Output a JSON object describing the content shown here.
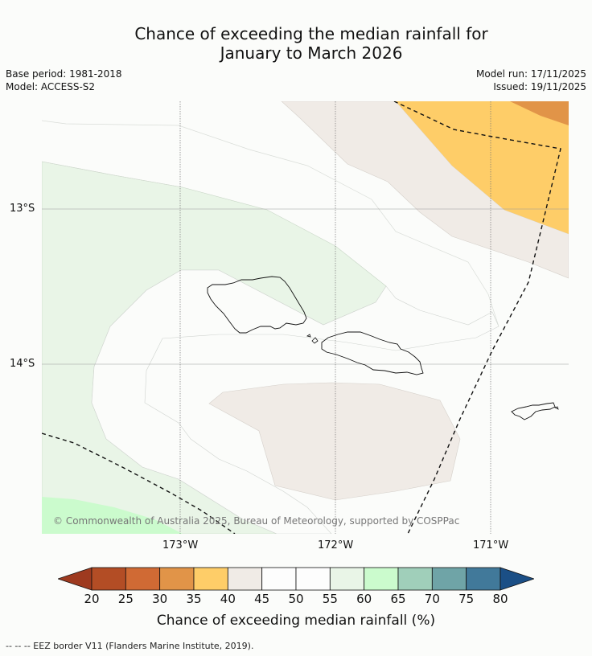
{
  "title_line1": "Chance of exceeding the median rainfall for",
  "title_line2": "January to March 2026",
  "base_period": "Base period: 1981-2018",
  "model": "Model: ACCESS-S2",
  "model_run": "Model run: 17/11/2025",
  "issued": "Issued: 19/11/2025",
  "lat_labels": [
    "13°S",
    "14°S"
  ],
  "lon_labels": [
    "173°W",
    "172°W",
    "171°W"
  ],
  "copyright": "© Commonwealth of Australia 2025, Bureau of Meteorology, supported by COSPPac",
  "colorbar": {
    "ticks": [
      "20",
      "25",
      "30",
      "35",
      "40",
      "45",
      "50",
      "55",
      "60",
      "65",
      "70",
      "75",
      "80"
    ],
    "colors": [
      "#9e3a1f",
      "#b34d25",
      "#d06a34",
      "#e19448",
      "#fecd68",
      "#f0ebe6",
      "#fdfdfd",
      "#fdfdfd",
      "#e9f5e7",
      "#cbfbcd",
      "#a0cfba",
      "#6fa4a7",
      "#41799a",
      "#1b4f86"
    ],
    "label": "Chance of exceeding median rainfall (%)"
  },
  "footnote": "--  --  -- EEZ border V11 (Flanders Marine Institute, 2019)."
}
